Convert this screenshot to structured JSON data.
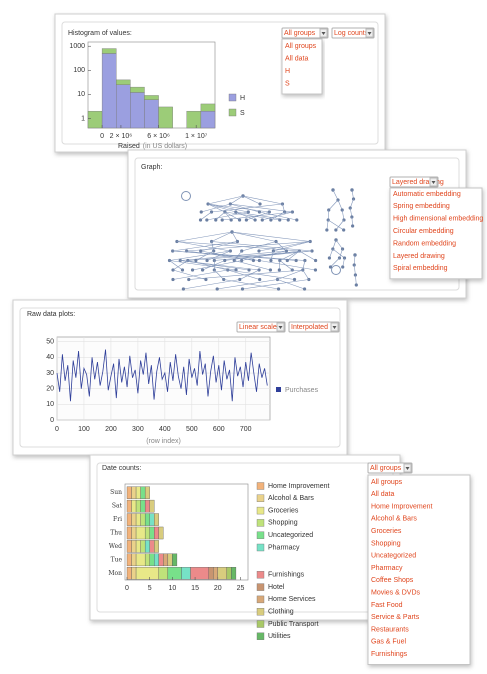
{
  "ui": {
    "panels": [
      {
        "title": "Histogram of values:",
        "controls": [
          "All groups",
          "Log counts"
        ],
        "menu": [
          "All groups",
          "All data",
          "H",
          "S"
        ]
      },
      {
        "title": "Graph:",
        "controls": [
          "Layered drawing"
        ],
        "menu": [
          "Automatic embedding",
          "Spring embedding",
          "High dimensional embedding",
          "Circular embedding",
          "Random embedding",
          "Layered drawing",
          "Spiral embedding"
        ]
      },
      {
        "title": "Raw data plots:",
        "controls": [
          "Linear scale",
          "Interpolated"
        ]
      },
      {
        "title": "Date counts:",
        "controls": [
          "All groups"
        ],
        "menu": [
          "All groups",
          "All data",
          "Home Improvement",
          "Alcohol & Bars",
          "Groceries",
          "Shopping",
          "Uncategorized",
          "Pharmacy",
          "Coffee Shops",
          "Movies & DVDs",
          "Fast Food",
          "Service & Parts",
          "Restaurants",
          "Gas & Fuel",
          "Furnishings"
        ]
      }
    ]
  },
  "chart_data": [
    {
      "type": "histogram",
      "xlabel": "Raised",
      "xlabel_unit": "(in US dollars)",
      "bins": [
        -1500000,
        0,
        1500000,
        3000000,
        4500000,
        6000000,
        7500000,
        9000000,
        10500000,
        12000000
      ],
      "series": [
        {
          "name": "H",
          "color": "#9b9fe0",
          "values": [
            0,
            500,
            25,
            12,
            6,
            0,
            0,
            0,
            2
          ]
        },
        {
          "name": "S",
          "color": "#9ccc78",
          "values": [
            2,
            300,
            15,
            8,
            3,
            3,
            0,
            2,
            2
          ]
        }
      ],
      "xlim": [
        -1500000,
        12000000
      ],
      "xticks": [
        0,
        {
          "value": 2000000,
          "label": "2 × 10⁶"
        },
        {
          "value": 6000000,
          "label": "6 × 10⁶"
        },
        {
          "value": 10000000,
          "label": "1 × 10⁷"
        }
      ],
      "ylim": [
        0.4,
        1500
      ],
      "yticks": [
        1,
        10,
        100,
        1000
      ],
      "log_y": true
    },
    {
      "type": "line",
      "xlabel": "(row index)",
      "grid": true,
      "x": [
        0,
        10,
        20,
        30,
        40,
        50,
        60,
        70,
        80,
        90,
        100,
        110,
        120,
        130,
        140,
        150,
        160,
        170,
        180,
        190,
        200,
        210,
        220,
        230,
        240,
        250,
        260,
        270,
        280,
        290,
        300,
        310,
        320,
        330,
        340,
        350,
        360,
        370,
        380,
        390,
        400,
        410,
        420,
        430,
        440,
        450,
        460,
        470,
        480,
        490,
        500,
        510,
        520,
        530,
        540,
        550,
        560,
        570,
        580,
        590,
        600,
        610,
        620,
        630,
        640,
        650,
        660,
        670,
        680,
        690,
        700,
        710,
        720,
        730,
        740,
        750,
        760,
        770,
        780
      ],
      "series": [
        {
          "name": "Purchases",
          "color": "#2f3f9a",
          "values": [
            30,
            18,
            42,
            25,
            35,
            12,
            38,
            27,
            44,
            20,
            33,
            29,
            15,
            40,
            26,
            37,
            22,
            31,
            45,
            19,
            28,
            36,
            14,
            39,
            24,
            34,
            21,
            41,
            27,
            32,
            17,
            38,
            29,
            43,
            23,
            35,
            13,
            31,
            40,
            26,
            30,
            18,
            37,
            25,
            42,
            28,
            20,
            34,
            16,
            39,
            27,
            33,
            22,
            44,
            29,
            36,
            15,
            31,
            41,
            24,
            35,
            19,
            38,
            26,
            32,
            12,
            40,
            28,
            34,
            21,
            37,
            25,
            43,
            30,
            18,
            36,
            27,
            33,
            22
          ]
        }
      ],
      "xlim": [
        0,
        790
      ],
      "xticks": [
        0,
        100,
        200,
        300,
        400,
        500,
        600,
        700
      ],
      "ylim": [
        0,
        53
      ],
      "yticks": [
        0,
        10,
        20,
        30,
        40,
        50
      ]
    },
    {
      "type": "bar",
      "orientation": "horizontal",
      "stacked": true,
      "categories": [
        "Mon",
        "Tue",
        "Wed",
        "Thu",
        "Fri",
        "Sat",
        "Sun"
      ],
      "series": [
        {
          "name": "Home Improvement",
          "color": "#f2b27a",
          "values": [
            1,
            1,
            1,
            1,
            1,
            1,
            1
          ]
        },
        {
          "name": "Alcohol & Bars",
          "color": "#ead28a",
          "values": [
            1,
            1,
            1,
            1,
            1,
            0,
            1
          ]
        },
        {
          "name": "Groceries",
          "color": "#e8e888",
          "values": [
            5,
            2,
            1,
            2,
            1,
            1,
            1
          ]
        },
        {
          "name": "Shopping",
          "color": "#bfe27a",
          "values": [
            2,
            1,
            1,
            1,
            1,
            1,
            0
          ]
        },
        {
          "name": "Uncategorized",
          "color": "#78e08a",
          "values": [
            3,
            1,
            0,
            1,
            1,
            1,
            1
          ]
        },
        {
          "name": "Pharmacy",
          "color": "#76e2c6",
          "values": [
            2,
            1,
            1,
            0,
            1,
            0,
            0
          ]
        },
        {
          "name": "Furnishings",
          "color": "#ec8a8a",
          "values": [
            4,
            1,
            1,
            1,
            0,
            1,
            0
          ]
        },
        {
          "name": "Hotel",
          "color": "#c89470",
          "values": [
            1,
            0,
            0,
            0,
            0,
            0,
            0
          ]
        },
        {
          "name": "Home Services",
          "color": "#d8a878",
          "values": [
            1,
            1,
            0,
            0,
            0,
            0,
            0
          ]
        },
        {
          "name": "Clothing",
          "color": "#d8cc7e",
          "values": [
            2,
            1,
            1,
            1,
            1,
            1,
            1
          ]
        },
        {
          "name": "Public Transport",
          "color": "#a8c866",
          "values": [
            1,
            0,
            0,
            0,
            0,
            0,
            0
          ]
        },
        {
          "name": "Utilities",
          "color": "#66b866",
          "values": [
            1,
            1,
            0,
            0,
            0,
            0,
            0
          ]
        }
      ],
      "xlim": [
        0,
        26
      ],
      "xticks": [
        0,
        5,
        10,
        15,
        20,
        25
      ]
    }
  ]
}
